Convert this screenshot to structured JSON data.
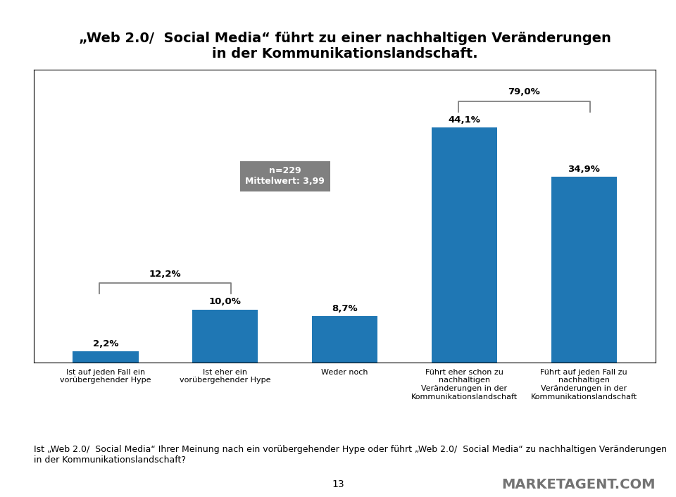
{
  "chart_data": {
    "type": "bar",
    "title": "„Web 2.0/  Social Media“ führt zu einer nachhaltigen Veränderungen\nin der Kommunikationslandschaft.",
    "categories": [
      "Ist auf jeden Fall ein\nvorübergehender Hype",
      "Ist eher ein\nvorübergehender Hype",
      "Weder noch",
      "Führt eher schon zu\nnachhaltigen\nVeränderungen in der\nKommunikationslandschaft",
      "Führt auf jeden Fall zu\nnachhaltigen\nVeränderungen in der\nKommunikationslandschaft"
    ],
    "values": [
      2.2,
      10.0,
      8.7,
      44.1,
      34.9
    ],
    "value_labels": [
      "2,2%",
      "10,0%",
      "8,7%",
      "44,1%",
      "34,9%"
    ],
    "data_labels": true,
    "ylim": [
      0,
      55
    ],
    "tick_labels": "x",
    "grid": false,
    "annotations": [
      "n=229",
      "Mittelwert: 3,99",
      "12,2%",
      "79,0%",
      "Ist „Web 2.0/  Social Media“ Ihrer Meinung nach ein vorübergehender Hype oder führt „Web 2.0/  Social Media“ zu nachhaltigen Veränderungen in der Kommunikationslandschaft?",
      "13",
      "MARKETAGENT.COM"
    ]
  }
}
